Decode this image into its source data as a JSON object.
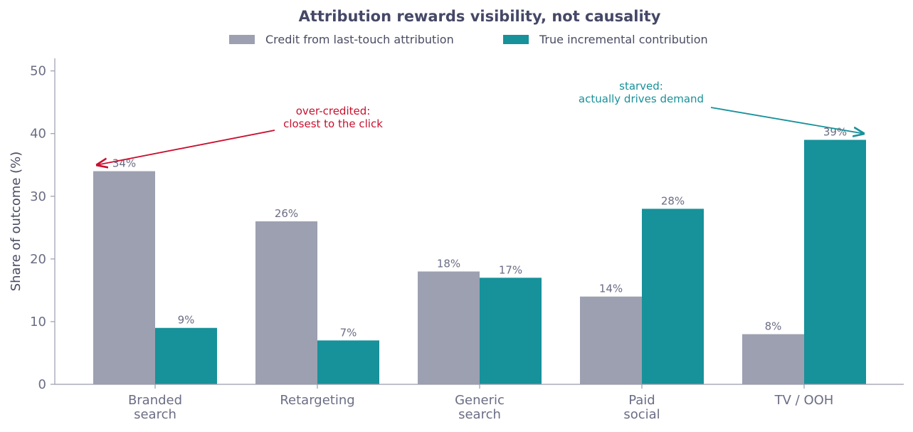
{
  "chart_data": {
    "type": "bar",
    "title": "Attribution rewards visibility, not causality",
    "ylabel": "Share of outcome (%)",
    "xlabel": "",
    "ylim": [
      0,
      52
    ],
    "yticks": [
      0,
      10,
      20,
      30,
      40,
      50
    ],
    "grid": false,
    "legend_position": "top-center",
    "categories": [
      [
        "Branded",
        "search"
      ],
      [
        "Retargeting"
      ],
      [
        "Generic",
        "search"
      ],
      [
        "Paid",
        "social"
      ],
      [
        "TV / OOH"
      ]
    ],
    "series": [
      {
        "name": "Credit from last-touch attribution",
        "color": "#9da0b0",
        "values": [
          34,
          26,
          18,
          14,
          8
        ],
        "labels": [
          "34%",
          "26%",
          "18%",
          "14%",
          "8%"
        ]
      },
      {
        "name": "True incremental contribution",
        "color": "#17919a",
        "values": [
          9,
          7,
          17,
          28,
          39
        ],
        "labels": [
          "9%",
          "7%",
          "17%",
          "28%",
          "39%"
        ]
      }
    ],
    "annotations": [
      {
        "lines": [
          "over-credited:",
          "closest to the click"
        ],
        "color": "#c8102e",
        "target_category": 0,
        "target_series": 0,
        "target_value": 35
      },
      {
        "lines": [
          "starved:",
          "actually drives demand"
        ],
        "color": "#17919a",
        "target_category": 4,
        "target_series": 1,
        "target_value": 40
      }
    ]
  }
}
